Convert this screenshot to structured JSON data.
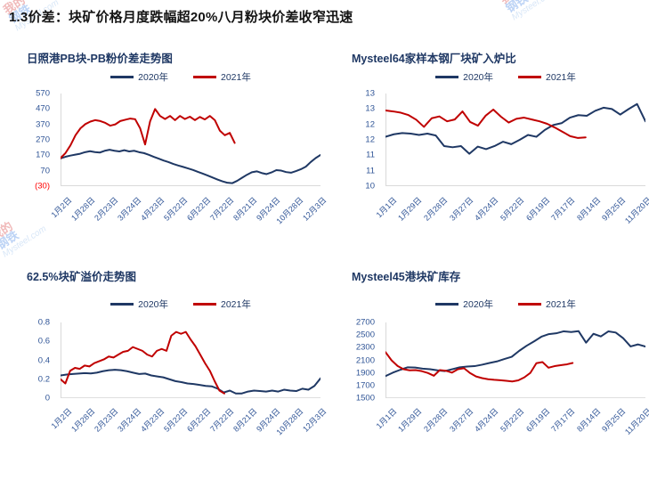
{
  "header": {
    "title": "1.3价差：块矿价格月度跌幅超20%八月粉块价差收窄迅速"
  },
  "watermark": {
    "line1": "我的",
    "line2": "钢铁",
    "site": "Mysteel.com"
  },
  "colors": {
    "line2020": "#1f3864",
    "line2021": "#c00000",
    "axis_text": "#2f5496",
    "negative_tick": "#ff0000",
    "spine": "#d9d9d9",
    "chart_title": "#1f3864",
    "header_text": "#141414"
  },
  "chart_data": [
    {
      "type": "line",
      "title": "日照港PB块-PB粉价差走势图",
      "ylim": [
        -30,
        570
      ],
      "y_ticks": [
        "570",
        "470",
        "370",
        "270",
        "170",
        "70",
        "(30)"
      ],
      "x_labels": [
        "1月2日",
        "1月28日",
        "2月23日",
        "3月24日",
        "4月23日",
        "5月22日",
        "6月22日",
        "7月22日",
        "8月21日",
        "9月24日",
        "10月28日",
        "12月3日"
      ],
      "grid": false,
      "legend_position": "top",
      "series": [
        {
          "name": "2020年",
          "color": "#1f3864",
          "x_end": 1,
          "values": [
            150,
            160,
            168,
            174,
            180,
            190,
            196,
            191,
            188,
            199,
            206,
            199,
            195,
            203,
            195,
            199,
            190,
            184,
            173,
            160,
            148,
            136,
            126,
            114,
            104,
            95,
            85,
            75,
            63,
            51,
            39,
            26,
            13,
            1,
            -8,
            -11,
            4,
            24,
            44,
            60,
            66,
            55,
            48,
            59,
            74,
            71,
            61,
            57,
            68,
            80,
            96,
            126,
            152,
            172
          ]
        },
        {
          "name": "2021年",
          "color": "#c00000",
          "x_end": 0.67,
          "values": [
            152,
            185,
            235,
            300,
            345,
            372,
            388,
            398,
            392,
            380,
            362,
            370,
            392,
            400,
            408,
            404,
            345,
            240,
            390,
            470,
            425,
            405,
            425,
            398,
            425,
            405,
            420,
            398,
            418,
            402,
            425,
            398,
            330,
            300,
            315,
            250
          ]
        }
      ]
    },
    {
      "type": "line",
      "title": "Mysteel64家样本钢厂块矿入炉比",
      "ylim": [
        10,
        13
      ],
      "y_ticks": [
        "13",
        "13",
        "12",
        "12",
        "11",
        "11",
        "10"
      ],
      "x_labels": [
        "1月1日",
        "1月29日",
        "2月28日",
        "3月27日",
        "4月24日",
        "5月22日",
        "6月19日",
        "7月17日",
        "8月14日",
        "9月25日",
        "11月20日"
      ],
      "grid": false,
      "legend_position": "top",
      "series": [
        {
          "name": "2020年",
          "color": "#1f3864",
          "x_end": 1,
          "values": [
            11.6,
            11.68,
            11.72,
            11.7,
            11.66,
            11.7,
            11.64,
            11.3,
            11.26,
            11.3,
            11.05,
            11.28,
            11.2,
            11.3,
            11.44,
            11.36,
            11.5,
            11.66,
            11.6,
            11.82,
            11.98,
            12.04,
            12.22,
            12.3,
            12.28,
            12.44,
            12.54,
            12.5,
            12.32,
            12.5,
            12.66,
            12.1
          ]
        },
        {
          "name": "2021年",
          "color": "#c00000",
          "x_end": 0.77,
          "values": [
            12.45,
            12.42,
            12.38,
            12.3,
            12.15,
            11.92,
            12.2,
            12.26,
            12.1,
            12.16,
            12.42,
            12.08,
            11.96,
            12.28,
            12.48,
            12.25,
            12.06,
            12.18,
            12.22,
            12.16,
            12.1,
            12.02,
            11.9,
            11.76,
            11.62,
            11.56,
            11.58
          ]
        }
      ]
    },
    {
      "type": "line",
      "title": "62.5%块矿溢价走势图",
      "ylim": [
        0,
        0.8
      ],
      "y_ticks": [
        "0.8",
        "0.6",
        "0.4",
        "0.2",
        "0"
      ],
      "x_labels": [
        "1月2日",
        "1月28日",
        "2月23日",
        "3月24日",
        "4月23日",
        "5月22日",
        "6月22日",
        "7月22日",
        "8月21日",
        "9月24日",
        "10月28日",
        "12月3日"
      ],
      "grid": false,
      "legend_position": "top",
      "series": [
        {
          "name": "2020年",
          "color": "#1f3864",
          "x_end": 1,
          "values": [
            0.24,
            0.25,
            0.255,
            0.26,
            0.265,
            0.262,
            0.27,
            0.285,
            0.295,
            0.3,
            0.295,
            0.285,
            0.27,
            0.255,
            0.26,
            0.24,
            0.23,
            0.22,
            0.2,
            0.18,
            0.17,
            0.155,
            0.15,
            0.14,
            0.13,
            0.125,
            0.1,
            0.06,
            0.08,
            0.05,
            0.05,
            0.07,
            0.08,
            0.075,
            0.07,
            0.08,
            0.07,
            0.09,
            0.08,
            0.075,
            0.1,
            0.09,
            0.13,
            0.21
          ]
        },
        {
          "name": "2021年",
          "color": "#c00000",
          "x_end": 0.63,
          "values": [
            0.2,
            0.155,
            0.29,
            0.32,
            0.31,
            0.345,
            0.335,
            0.37,
            0.39,
            0.41,
            0.44,
            0.43,
            0.46,
            0.49,
            0.5,
            0.54,
            0.52,
            0.5,
            0.46,
            0.44,
            0.5,
            0.52,
            0.5,
            0.66,
            0.7,
            0.68,
            0.7,
            0.62,
            0.55,
            0.46,
            0.37,
            0.29,
            0.18,
            0.08,
            0.05
          ]
        }
      ]
    },
    {
      "type": "line",
      "title": "Mysteel45港块矿库存",
      "ylim": [
        1500,
        2700
      ],
      "y_ticks": [
        "2700",
        "2500",
        "2300",
        "2100",
        "1900",
        "1700",
        "1500"
      ],
      "x_labels": [
        "1月1日",
        "1月29日",
        "2月28日",
        "3月27日",
        "4月24日",
        "5月22日",
        "6月19日",
        "7月17日",
        "8月14日",
        "9月25日",
        "11月20日"
      ],
      "grid": false,
      "legend_position": "top",
      "series": [
        {
          "name": "2020年",
          "color": "#1f3864",
          "x_end": 1,
          "values": [
            1850,
            1905,
            1950,
            1990,
            1985,
            1968,
            1958,
            1942,
            1930,
            1958,
            1988,
            2000,
            2008,
            2030,
            2058,
            2082,
            2120,
            2155,
            2250,
            2330,
            2400,
            2475,
            2515,
            2528,
            2560,
            2548,
            2562,
            2380,
            2520,
            2478,
            2558,
            2540,
            2450,
            2320,
            2352,
            2318
          ]
        },
        {
          "name": "2021年",
          "color": "#c00000",
          "x_end": 0.72,
          "values": [
            2230,
            2100,
            2010,
            1958,
            1942,
            1945,
            1928,
            1900,
            1855,
            1945,
            1935,
            1905,
            1958,
            1975,
            1898,
            1845,
            1818,
            1800,
            1790,
            1785,
            1775,
            1765,
            1782,
            1830,
            1902,
            2055,
            2072,
            1982,
            2008,
            2022,
            2035,
            2058
          ]
        }
      ]
    }
  ]
}
